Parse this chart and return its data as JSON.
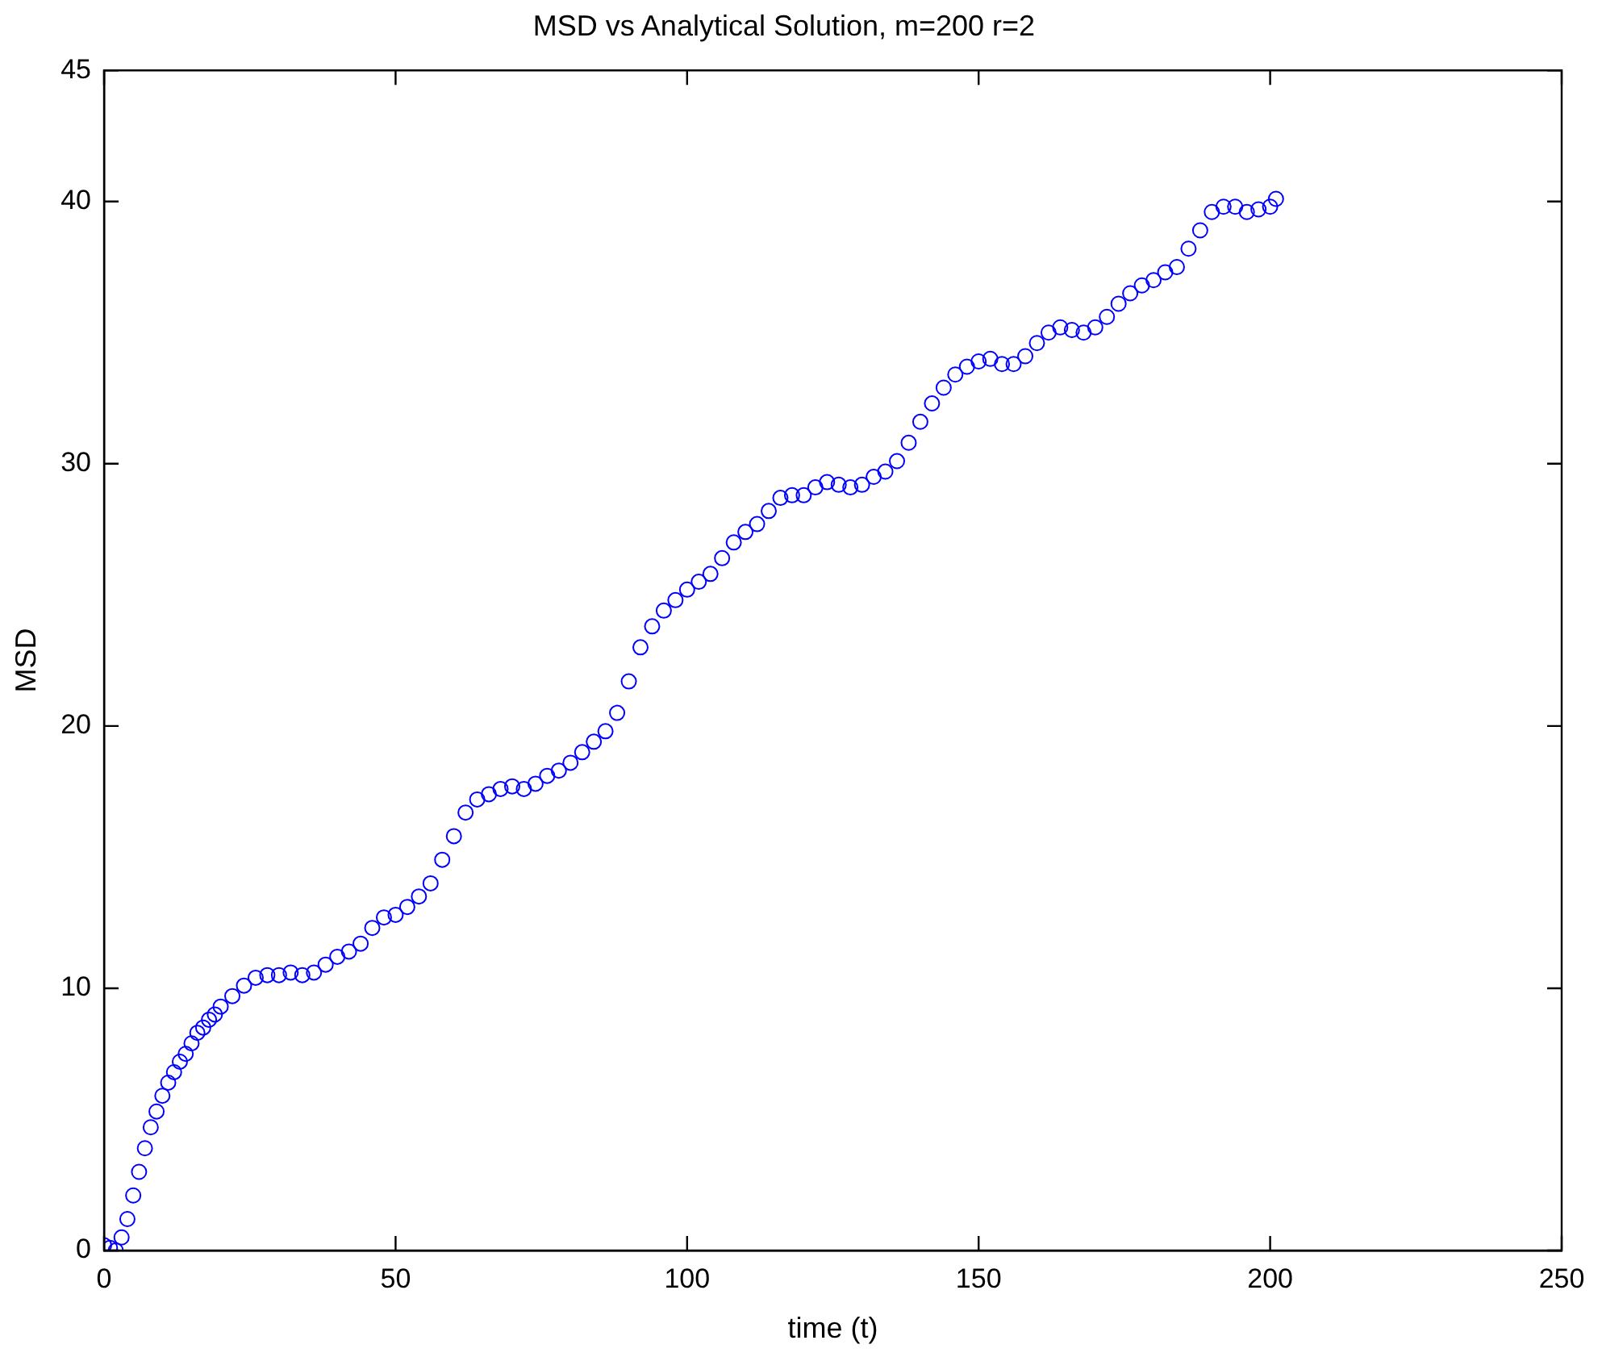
{
  "chart_data": {
    "type": "scatter",
    "title": "MSD vs Analytical Solution, m=200 r=2",
    "xlabel": "time (t)",
    "ylabel": "MSD",
    "x": [
      0,
      1,
      2,
      3,
      4,
      5,
      6,
      7,
      8,
      9,
      10,
      11,
      12,
      13,
      14,
      15,
      16,
      17,
      18,
      19,
      20,
      22,
      24,
      26,
      28,
      30,
      32,
      34,
      36,
      38,
      40,
      42,
      44,
      46,
      48,
      50,
      52,
      54,
      56,
      58,
      60,
      62,
      64,
      66,
      68,
      70,
      72,
      74,
      76,
      78,
      80,
      82,
      84,
      86,
      88,
      90,
      92,
      94,
      96,
      98,
      100,
      102,
      104,
      106,
      108,
      110,
      112,
      114,
      116,
      118,
      120,
      122,
      124,
      126,
      128,
      130,
      132,
      134,
      136,
      138,
      140,
      142,
      144,
      146,
      148,
      150,
      152,
      154,
      156,
      158,
      160,
      162,
      164,
      166,
      168,
      170,
      172,
      174,
      176,
      178,
      180,
      182,
      184,
      186,
      188,
      190,
      192,
      194,
      196,
      198,
      200,
      201
    ],
    "values": [
      0.2,
      0.1,
      0,
      0.5,
      1.2,
      2.1,
      3.0,
      3.9,
      4.7,
      5.3,
      5.9,
      6.4,
      6.8,
      7.2,
      7.5,
      7.9,
      8.3,
      8.5,
      8.8,
      9.0,
      9.3,
      9.7,
      10.1,
      10.4,
      10.5,
      10.5,
      10.6,
      10.5,
      10.6,
      10.9,
      11.2,
      11.4,
      11.7,
      12.3,
      12.7,
      12.8,
      13.1,
      13.5,
      14.0,
      14.9,
      15.8,
      16.7,
      17.2,
      17.4,
      17.6,
      17.7,
      17.6,
      17.8,
      18.1,
      18.3,
      18.6,
      19.0,
      19.4,
      19.8,
      20.5,
      21.7,
      23.0,
      23.8,
      24.4,
      24.8,
      25.2,
      25.5,
      25.8,
      26.4,
      27.0,
      27.4,
      27.7,
      28.2,
      28.7,
      28.8,
      28.8,
      29.1,
      29.3,
      29.2,
      29.1,
      29.2,
      29.5,
      29.7,
      30.1,
      30.8,
      31.6,
      32.3,
      32.9,
      33.4,
      33.7,
      33.9,
      34.0,
      33.8,
      33.8,
      34.1,
      34.6,
      35.0,
      35.2,
      35.1,
      35.0,
      35.2,
      35.6,
      36.1,
      36.5,
      36.8,
      37.0,
      37.3,
      37.5,
      38.2,
      38.9,
      39.6,
      39.8,
      39.8,
      39.6,
      39.7,
      39.8,
      40.1
    ],
    "color": "#0000ff",
    "marker": "circle",
    "xlim": [
      0,
      250
    ],
    "xticks": [
      0,
      50,
      100,
      150,
      200,
      250
    ],
    "ylim": [
      0,
      45
    ],
    "yticks": [
      0,
      10,
      20,
      30,
      40,
      45
    ],
    "grid": false,
    "legend": false
  }
}
